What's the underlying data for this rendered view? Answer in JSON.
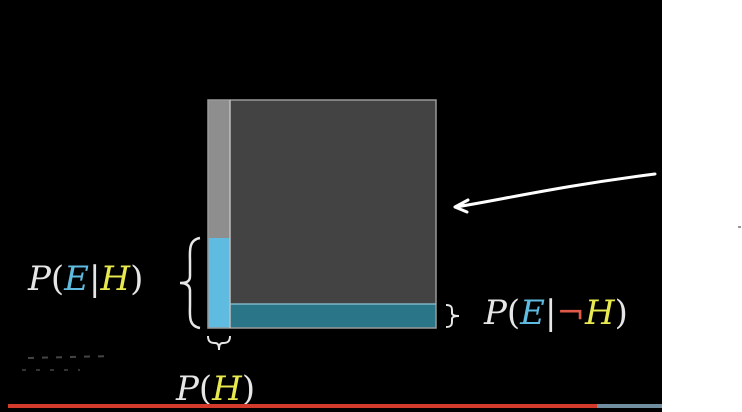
{
  "video": {
    "progress_fraction": 0.9,
    "colors": {
      "background": "#000000",
      "square_fill": "#434343",
      "square_border": "#8a8a8a",
      "strip_gray": "#8e8e8e",
      "cyan": "#5fbbe0",
      "teal": "#2a7588",
      "yellow": "#e8e84f",
      "red": "#e05a4a",
      "progress_played": "#d23a2c",
      "progress_remaining": "#6f8ea0"
    }
  },
  "labels": {
    "p_e_given_h": {
      "P": "P",
      "open": "(",
      "E": "E",
      "bar": "|",
      "H": "H",
      "close": ")"
    },
    "p_e_given_not_h": {
      "P": "P",
      "open": "(",
      "E": "E",
      "bar": "|",
      "not": "¬",
      "H": "H",
      "close": ")"
    },
    "p_h": {
      "P": "P",
      "open": "(",
      "H": "H",
      "close": ")"
    }
  },
  "icons": [
    "left-curly-brace-icon",
    "right-curly-brace-icon",
    "down-curly-brace-icon",
    "arrow-icon"
  ]
}
